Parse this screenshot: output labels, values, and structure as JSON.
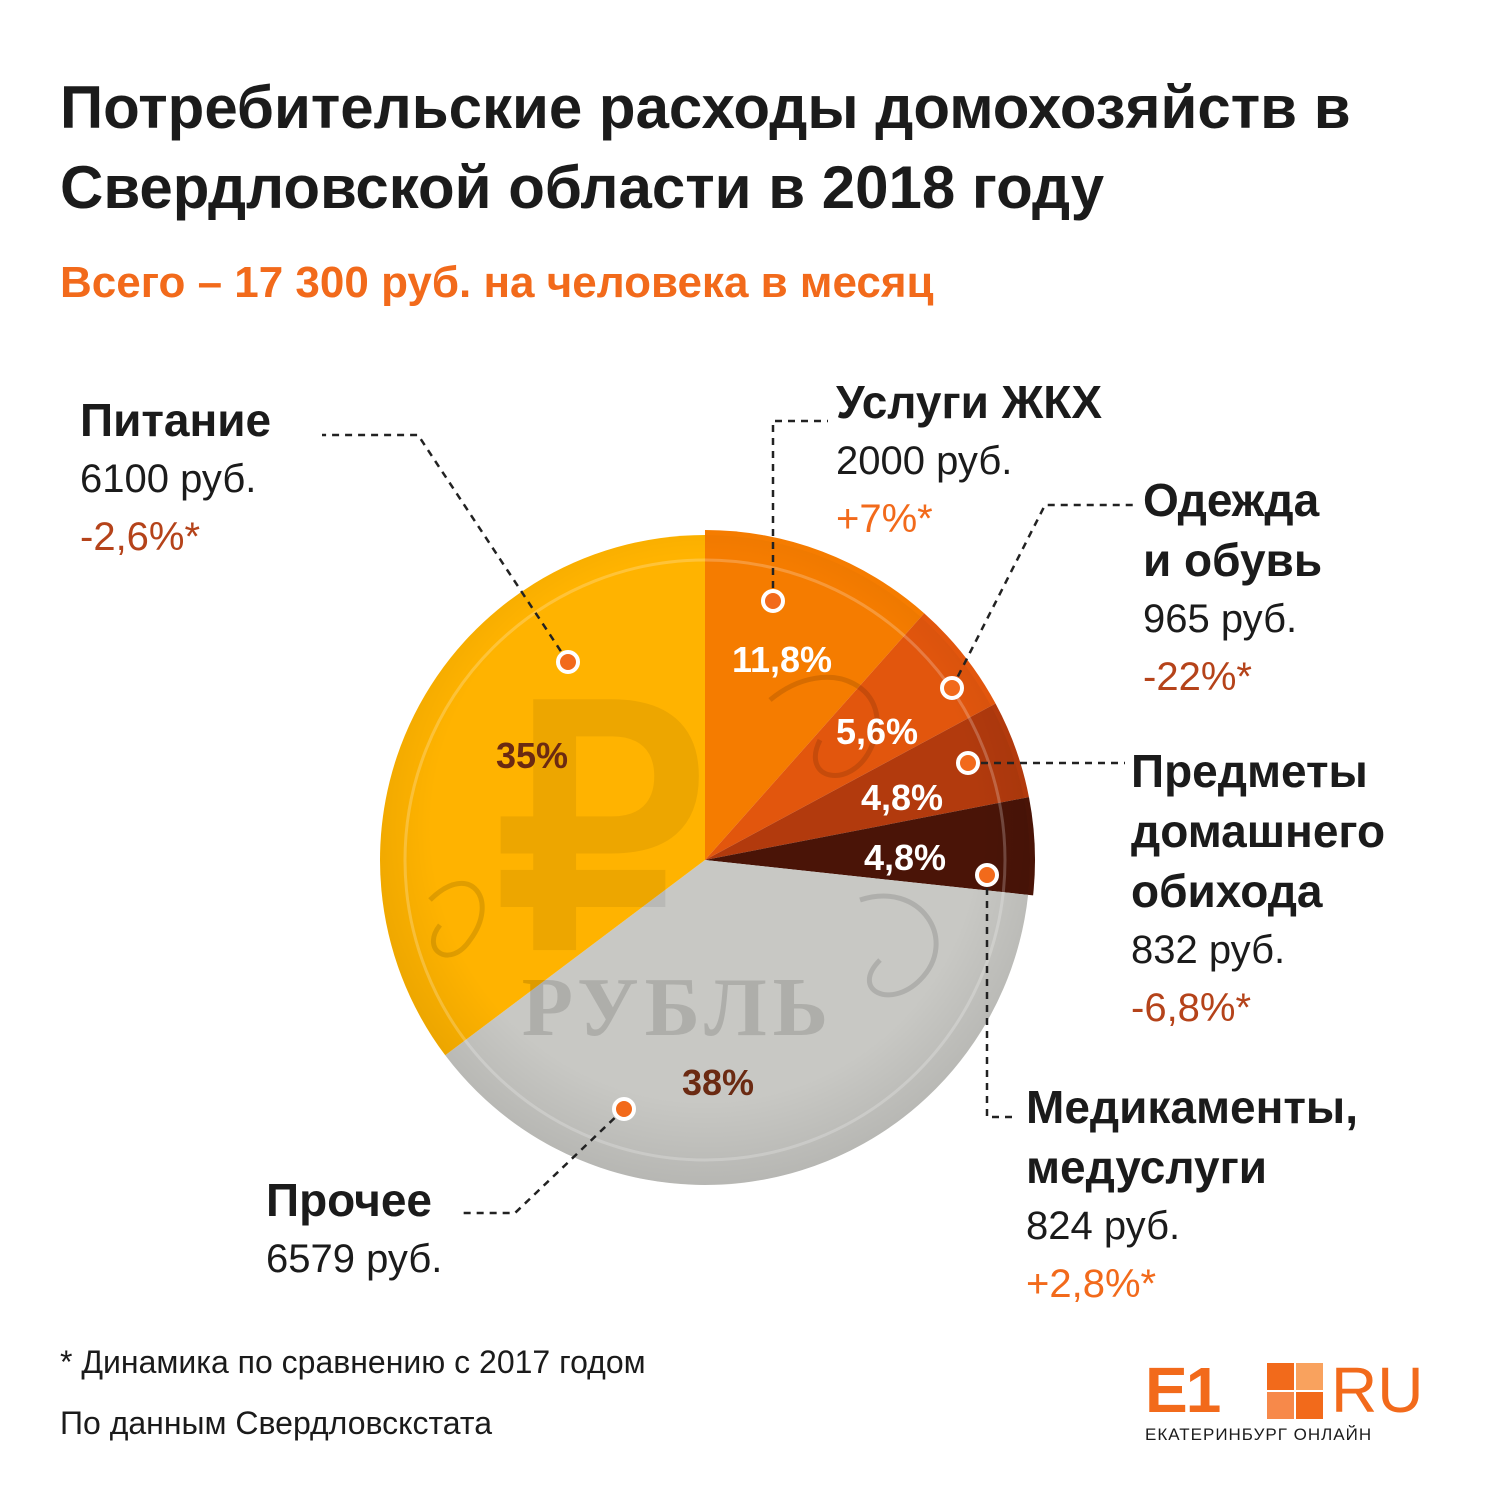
{
  "header": {
    "title": "Потребительские расходы домохозяйств в Свердловской области в 2018 году",
    "subtitle": "Всего – 17 300 руб. на человека в месяц"
  },
  "colors": {
    "accent": "#f26a1b",
    "dark_accent": "#b5431a",
    "pct_dark": "#6b2a12"
  },
  "coin": {
    "label": "РУБЛЬ",
    "symbol": "₽"
  },
  "chart_data": {
    "type": "pie",
    "title": "Потребительские расходы домохозяйств в Свердловской области в 2018 году",
    "unit": "руб.",
    "slices": [
      {
        "key": "food",
        "name": "Питание",
        "amount": "6100 руб.",
        "value": 6100,
        "percent": 35,
        "percent_label": "35%",
        "change": "-2,6%*",
        "color": "#ffb300"
      },
      {
        "key": "housing",
        "name": "Услуги ЖКХ",
        "amount": "2000 руб.",
        "value": 2000,
        "percent": 11.8,
        "percent_label": "11,8%",
        "change": "+7%*",
        "color": "#f57c00"
      },
      {
        "key": "clothes",
        "name": "Одежда и обувь",
        "amount": "965 руб.",
        "value": 965,
        "percent": 5.6,
        "percent_label": "5,6%",
        "change": "-22%*",
        "color": "#e2560d"
      },
      {
        "key": "household",
        "name": "Предметы домашнего обихода",
        "amount": "832 руб.",
        "value": 832,
        "percent": 4.8,
        "percent_label": "4,8%",
        "change": "-6,8%*",
        "color": "#b23a0d"
      },
      {
        "key": "medicine",
        "name": "Медикаменты, медуслуги",
        "amount": "824 руб.",
        "value": 824,
        "percent": 4.8,
        "percent_label": "4,8%",
        "change": "+2,8%*",
        "color": "#4a1407"
      },
      {
        "key": "other",
        "name": "Прочее",
        "amount": "6579 руб.",
        "value": 6579,
        "percent": 38,
        "percent_label": "38%",
        "change": "",
        "color": "#c8c8c4"
      }
    ]
  },
  "labels": {
    "food": {
      "name": "Питание",
      "amount": "6100 руб.",
      "change": "-2,6%*"
    },
    "housing": {
      "name": "Услуги ЖКХ",
      "amount": "2000 руб.",
      "change": "+7%*"
    },
    "clothes": {
      "name_line1": "Одежда",
      "name_line2": "и обувь",
      "amount": "965 руб.",
      "change": "-22%*"
    },
    "household": {
      "name_line1": "Предметы",
      "name_line2": "домашнего",
      "name_line3": "обихода",
      "amount": "832 руб.",
      "change": "-6,8%*"
    },
    "medicine": {
      "name_line1": "Медикаменты,",
      "name_line2": "медуслуги",
      "amount": "824 руб.",
      "change": "+2,8%*"
    },
    "other": {
      "name": "Прочее",
      "amount": "6579 руб."
    }
  },
  "footer": {
    "note": "* Динамика по сравнению с 2017 годом",
    "source": "По данным Свердловскстата"
  },
  "logo": {
    "e1": "E1",
    "ru": "RU",
    "city": "ЕКАТЕРИНБУРГ ОНЛАЙН"
  }
}
